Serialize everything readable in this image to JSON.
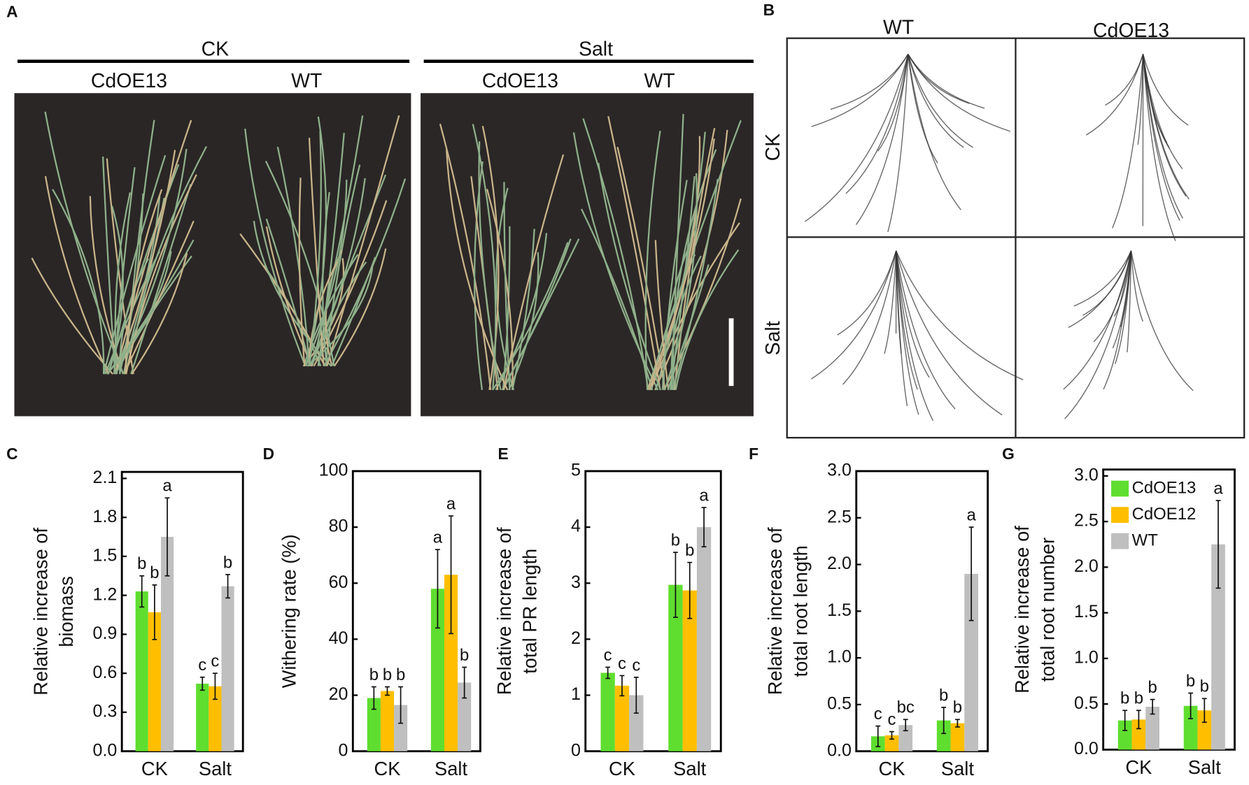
{
  "photo_a": {
    "label": "A",
    "groups": [
      {
        "name": "CK",
        "lines": [
          "CdOE13",
          "WT"
        ]
      },
      {
        "name": "Salt",
        "lines": [
          "CdOE13",
          "WT"
        ]
      }
    ]
  },
  "photo_b": {
    "label": "B",
    "columns": [
      "WT",
      "CdOE13"
    ],
    "rows": [
      "CK",
      "Salt"
    ]
  },
  "chart_data": [
    {
      "panel_label": "C",
      "type": "bar",
      "ylabel": [
        "Relative increase of",
        "biomass"
      ],
      "categories": [
        "CK",
        "Salt"
      ],
      "ylim": [
        0,
        2.15
      ],
      "yticks": [
        {
          "value": 0,
          "label": "0.0"
        },
        0.3,
        0.6,
        0.9,
        1.2,
        1.5,
        1.8,
        2.1
      ],
      "series": [
        {
          "color": "#5fde2f",
          "values": [
            1.23,
            0.52
          ],
          "errors": [
            0.12,
            0.05
          ],
          "letters": [
            "b",
            "c"
          ]
        },
        {
          "color": "#ffbf00",
          "values": [
            1.07,
            0.5
          ],
          "errors": [
            0.21,
            0.1
          ],
          "letters": [
            "b",
            "c"
          ]
        },
        {
          "color": "#bfbfbf",
          "values": [
            1.65,
            1.27
          ],
          "errors": [
            0.3,
            0.09
          ],
          "letters": [
            "a",
            "b"
          ]
        }
      ]
    },
    {
      "panel_label": "D",
      "type": "bar",
      "ylabel": [
        "Withering rate (%)"
      ],
      "categories": [
        "CK",
        "Salt"
      ],
      "ylim": [
        0,
        100
      ],
      "yticks": [
        0,
        20,
        40,
        60,
        80,
        100
      ],
      "series": [
        {
          "color": "#5fde2f",
          "values": [
            19,
            58
          ],
          "errors": [
            4,
            14
          ],
          "letters": [
            "b",
            "a"
          ]
        },
        {
          "color": "#ffbf00",
          "values": [
            21.5,
            63
          ],
          "errors": [
            1.5,
            21
          ],
          "letters": [
            "b",
            "a"
          ]
        },
        {
          "color": "#bfbfbf",
          "values": [
            16.5,
            24.5
          ],
          "errors": [
            6.5,
            5.5
          ],
          "letters": [
            "b",
            "b"
          ]
        }
      ]
    },
    {
      "panel_label": "E",
      "type": "bar",
      "ylabel": [
        "Relative increase of",
        "total PR length"
      ],
      "categories": [
        "CK",
        "Salt"
      ],
      "ylim": [
        0,
        5
      ],
      "yticks": [
        0,
        1,
        2,
        3,
        4,
        5
      ],
      "series": [
        {
          "color": "#5fde2f",
          "values": [
            1.4,
            2.97
          ],
          "errors": [
            0.1,
            0.58
          ],
          "letters": [
            "c",
            "b"
          ]
        },
        {
          "color": "#ffbf00",
          "values": [
            1.17,
            2.87
          ],
          "errors": [
            0.18,
            0.5
          ],
          "letters": [
            "c",
            "b"
          ]
        },
        {
          "color": "#bfbfbf",
          "values": [
            1.0,
            4.0
          ],
          "errors": [
            0.32,
            0.35
          ],
          "letters": [
            "c",
            "a"
          ]
        }
      ]
    },
    {
      "panel_label": "F",
      "type": "bar",
      "ylabel": [
        "Relative increase of",
        "total root length"
      ],
      "categories": [
        "CK",
        "Salt"
      ],
      "ylim": [
        0,
        3
      ],
      "yticks": [
        {
          "value": 0,
          "label": "0.0"
        },
        0.5,
        {
          "value": 1,
          "label": "1.0"
        },
        1.5,
        {
          "value": 2,
          "label": "2.0"
        },
        2.5,
        {
          "value": 3,
          "label": "3.0"
        }
      ],
      "series": [
        {
          "color": "#5fde2f",
          "values": [
            0.16,
            0.33
          ],
          "errors": [
            0.11,
            0.14
          ],
          "letters": [
            "c",
            "b"
          ]
        },
        {
          "color": "#ffbf00",
          "values": [
            0.17,
            0.3
          ],
          "errors": [
            0.04,
            0.04
          ],
          "letters": [
            "c",
            "b"
          ]
        },
        {
          "color": "#bfbfbf",
          "values": [
            0.28,
            1.9
          ],
          "errors": [
            0.06,
            0.5
          ],
          "letters": [
            "bc",
            "a"
          ]
        }
      ]
    },
    {
      "panel_label": "G",
      "type": "bar",
      "ylabel": [
        "Relative increase of",
        "total root number"
      ],
      "categories": [
        "CK",
        "Salt"
      ],
      "ylim": [
        0,
        3.07
      ],
      "yticks": [
        {
          "value": 0,
          "label": "0.0"
        },
        0.5,
        {
          "value": 1,
          "label": "1.0"
        },
        1.5,
        {
          "value": 2,
          "label": "2.0"
        },
        2.5,
        {
          "value": 3,
          "label": "3.0"
        }
      ],
      "legend": "upper left",
      "series": [
        {
          "name": "CdOE13",
          "color": "#5fde2f",
          "values": [
            0.32,
            0.48
          ],
          "errors": [
            0.11,
            0.14
          ],
          "letters": [
            "b",
            "b"
          ]
        },
        {
          "name": "CdOE12",
          "color": "#ffbf00",
          "values": [
            0.33,
            0.43
          ],
          "errors": [
            0.1,
            0.13
          ],
          "letters": [
            "b",
            "b"
          ]
        },
        {
          "name": "WT",
          "color": "#bfbfbf",
          "values": [
            0.47,
            2.25
          ],
          "errors": [
            0.08,
            0.48
          ],
          "letters": [
            "b",
            "a"
          ]
        }
      ]
    }
  ]
}
